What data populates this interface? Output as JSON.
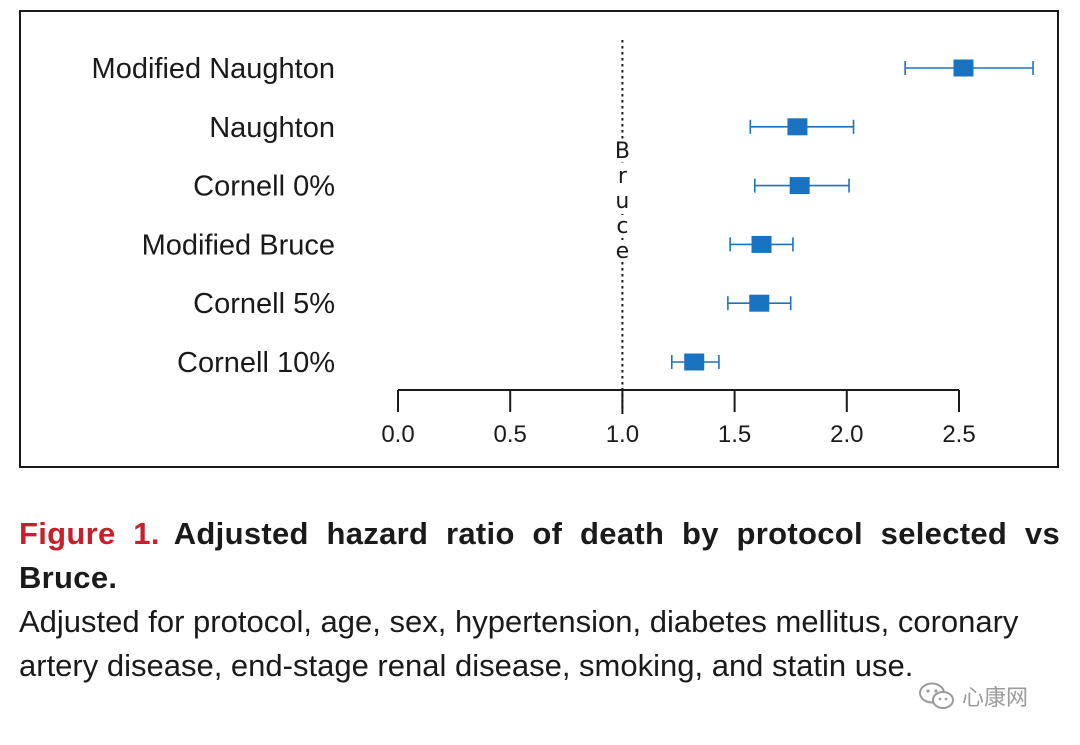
{
  "chart_data": {
    "type": "forest",
    "categories": [
      "Modified Naughton",
      "Naughton",
      "Cornell 0%",
      "Modified Bruce",
      "Cornell 5%",
      "Cornell 10%"
    ],
    "estimates": [
      2.52,
      1.78,
      1.79,
      1.62,
      1.61,
      1.32
    ],
    "ci_lower": [
      2.26,
      1.57,
      1.59,
      1.48,
      1.47,
      1.22
    ],
    "ci_upper": [
      2.83,
      2.03,
      2.01,
      1.76,
      1.75,
      1.43
    ],
    "reference_value": 1.0,
    "reference_label": "Bruce",
    "xlim": [
      0.0,
      2.5
    ],
    "xticks": [
      "0.0",
      "0.5",
      "1.0",
      "1.5",
      "2.0",
      "2.5"
    ],
    "marker_color": "#1a73c0"
  },
  "caption": {
    "figure_label": "Figure 1.",
    "title": "Adjusted hazard ratio of death by protocol selected vs Bruce.",
    "body": "Adjusted for protocol, age, sex, hypertension, diabetes mellitus, coronary artery disease, end-stage renal disease, smoking, and statin use.",
    "figure_label_color": "#c8202a"
  },
  "watermark": {
    "text": "心康网"
  }
}
